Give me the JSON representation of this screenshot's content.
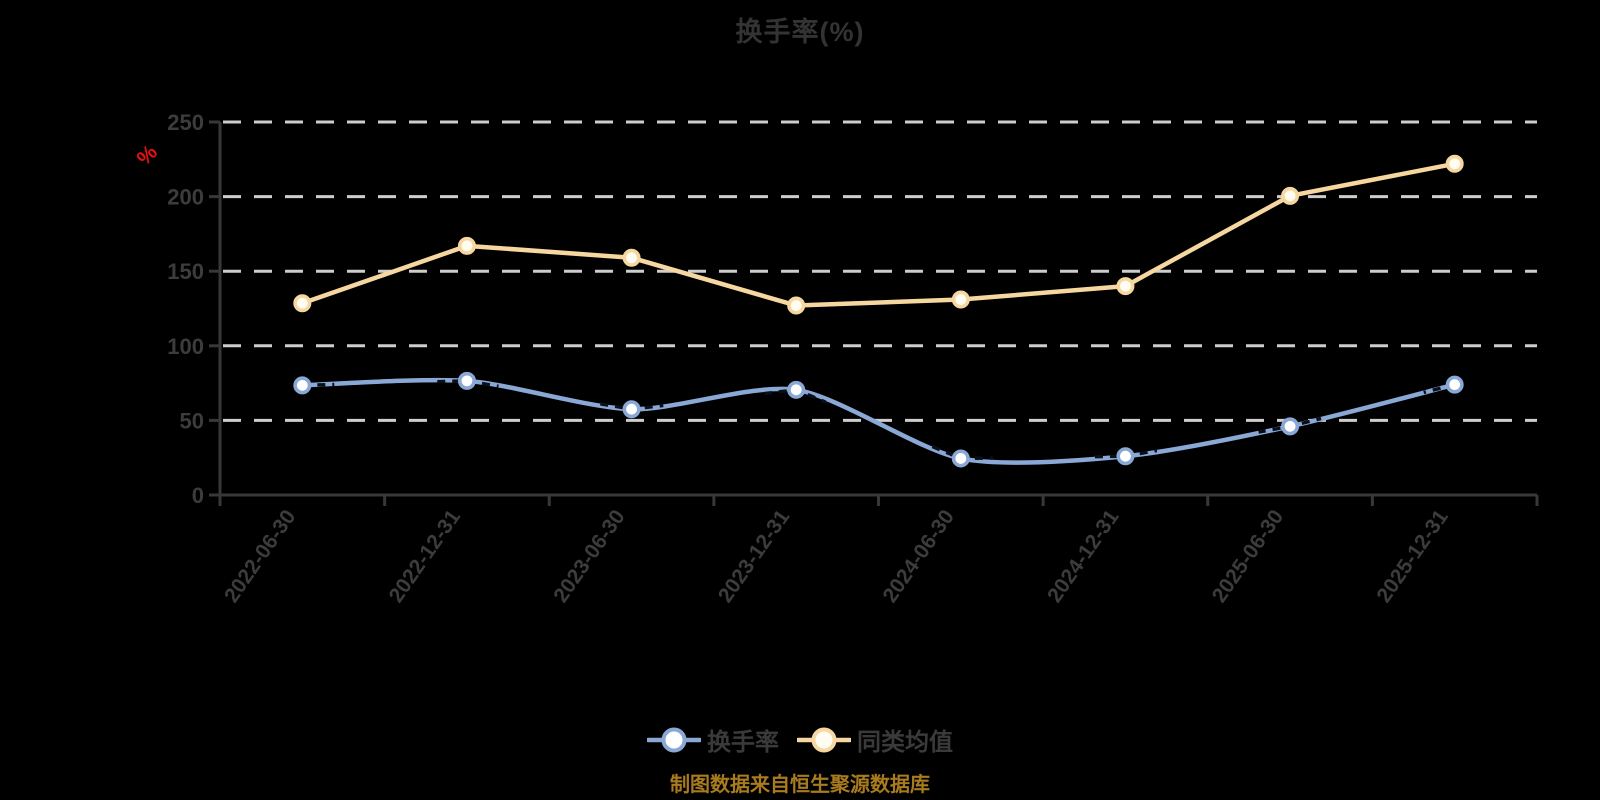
{
  "title": "换手率(%)",
  "source_note": "制图数据来自恒生聚源数据库",
  "y_axis": {
    "unit": "%",
    "ticks": [
      0,
      50,
      100,
      150,
      200,
      250
    ]
  },
  "legend": {
    "items": [
      {
        "label": "换手率"
      },
      {
        "label": "同类均值"
      }
    ]
  },
  "chart_data": {
    "type": "line",
    "title": "换手率(%)",
    "categories": [
      "2022-06-30",
      "2022-12-31",
      "2023-06-30",
      "2023-12-31",
      "2024-06-30",
      "2024-12-31",
      "2025-06-30",
      "2025-12-31"
    ],
    "series": [
      {
        "name": "换手率",
        "color": "#8AA8D6",
        "marker_fill": "#FFFFFF",
        "smooth": true,
        "line_style": "solid with dark dashed overlay near points",
        "values": [
          73.5,
          76.5,
          57.5,
          70.5,
          24.5,
          26,
          46,
          74
        ]
      },
      {
        "name": "同类均值",
        "color": "#F7D7A0",
        "marker_fill": "#FFFDF2",
        "smooth": false,
        "line_style": "solid",
        "values": [
          128.5,
          167,
          159,
          127,
          131,
          140,
          200.5,
          222
        ]
      }
    ],
    "ylim": [
      0,
      250
    ],
    "ylabel": "%",
    "xlabel": "",
    "grid": "horizontal-dashed",
    "legend_position": "bottom",
    "x_label_rotation_deg": -55
  },
  "colors": {
    "background": "#000000",
    "title_text": "#333333",
    "axis_text": "#3C3C3C",
    "axis_line": "#383838",
    "gridline": "#CDCDCD",
    "unit_label": "#E81010",
    "source_note": "#A87B1E",
    "legend_text": "#3A3A3A",
    "series_turnover": "#8AA8D6",
    "series_average": "#F7D7A0",
    "dashed_overlay": "#0A0F1A"
  }
}
